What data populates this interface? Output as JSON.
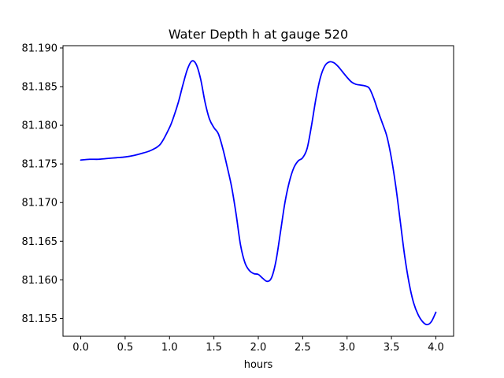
{
  "chart_data": {
    "type": "line",
    "title": "Water Depth h at gauge 520",
    "xlabel": "hours",
    "ylabel": "",
    "xlim": [
      -0.2,
      4.2
    ],
    "ylim": [
      81.1527,
      81.1903
    ],
    "xticks": [
      0.0,
      0.5,
      1.0,
      1.5,
      2.0,
      2.5,
      3.0,
      3.5,
      4.0
    ],
    "xtick_labels": [
      "0.0",
      "0.5",
      "1.0",
      "1.5",
      "2.0",
      "2.5",
      "3.0",
      "3.5",
      "4.0"
    ],
    "yticks": [
      81.155,
      81.16,
      81.165,
      81.17,
      81.175,
      81.18,
      81.185,
      81.19
    ],
    "ytick_labels": [
      "81.155",
      "81.160",
      "81.165",
      "81.170",
      "81.175",
      "81.180",
      "81.185",
      "81.190"
    ],
    "grid": false,
    "series": [
      {
        "name": "",
        "color": "#0000ff",
        "x": [
          0.0,
          0.1,
          0.2,
          0.3,
          0.4,
          0.5,
          0.6,
          0.7,
          0.8,
          0.9,
          1.0,
          1.05,
          1.1,
          1.15,
          1.2,
          1.25,
          1.3,
          1.35,
          1.4,
          1.45,
          1.5,
          1.55,
          1.6,
          1.65,
          1.7,
          1.75,
          1.8,
          1.85,
          1.9,
          1.95,
          2.0,
          2.05,
          2.1,
          2.15,
          2.2,
          2.25,
          2.3,
          2.35,
          2.4,
          2.45,
          2.5,
          2.55,
          2.6,
          2.65,
          2.7,
          2.75,
          2.8,
          2.85,
          2.9,
          2.95,
          3.0,
          3.05,
          3.1,
          3.15,
          3.2,
          3.25,
          3.3,
          3.35,
          3.4,
          3.45,
          3.5,
          3.55,
          3.6,
          3.65,
          3.7,
          3.75,
          3.8,
          3.85,
          3.9,
          3.95,
          4.0
        ],
        "y": [
          81.1755,
          81.1756,
          81.1756,
          81.1757,
          81.1758,
          81.1759,
          81.1761,
          81.1764,
          81.1768,
          81.1776,
          81.1797,
          81.1812,
          81.183,
          81.1852,
          81.1872,
          81.1883,
          81.1879,
          81.186,
          81.183,
          81.1808,
          81.1797,
          81.1789,
          81.177,
          81.1746,
          81.172,
          81.1685,
          81.1645,
          81.1622,
          81.1612,
          81.1608,
          81.1607,
          81.1602,
          81.1598,
          81.1603,
          81.1625,
          81.1662,
          81.17,
          81.1727,
          81.1745,
          81.1754,
          81.1758,
          81.177,
          81.18,
          81.1835,
          81.1862,
          81.1877,
          81.1882,
          81.1881,
          81.1876,
          81.1869,
          81.1862,
          81.1856,
          81.1853,
          81.1852,
          81.1851,
          81.1848,
          81.1835,
          81.1818,
          81.1802,
          81.1785,
          81.1757,
          81.172,
          81.1675,
          81.163,
          81.1595,
          81.157,
          81.1555,
          81.1546,
          81.1542,
          81.1546,
          81.1558
        ]
      }
    ]
  }
}
